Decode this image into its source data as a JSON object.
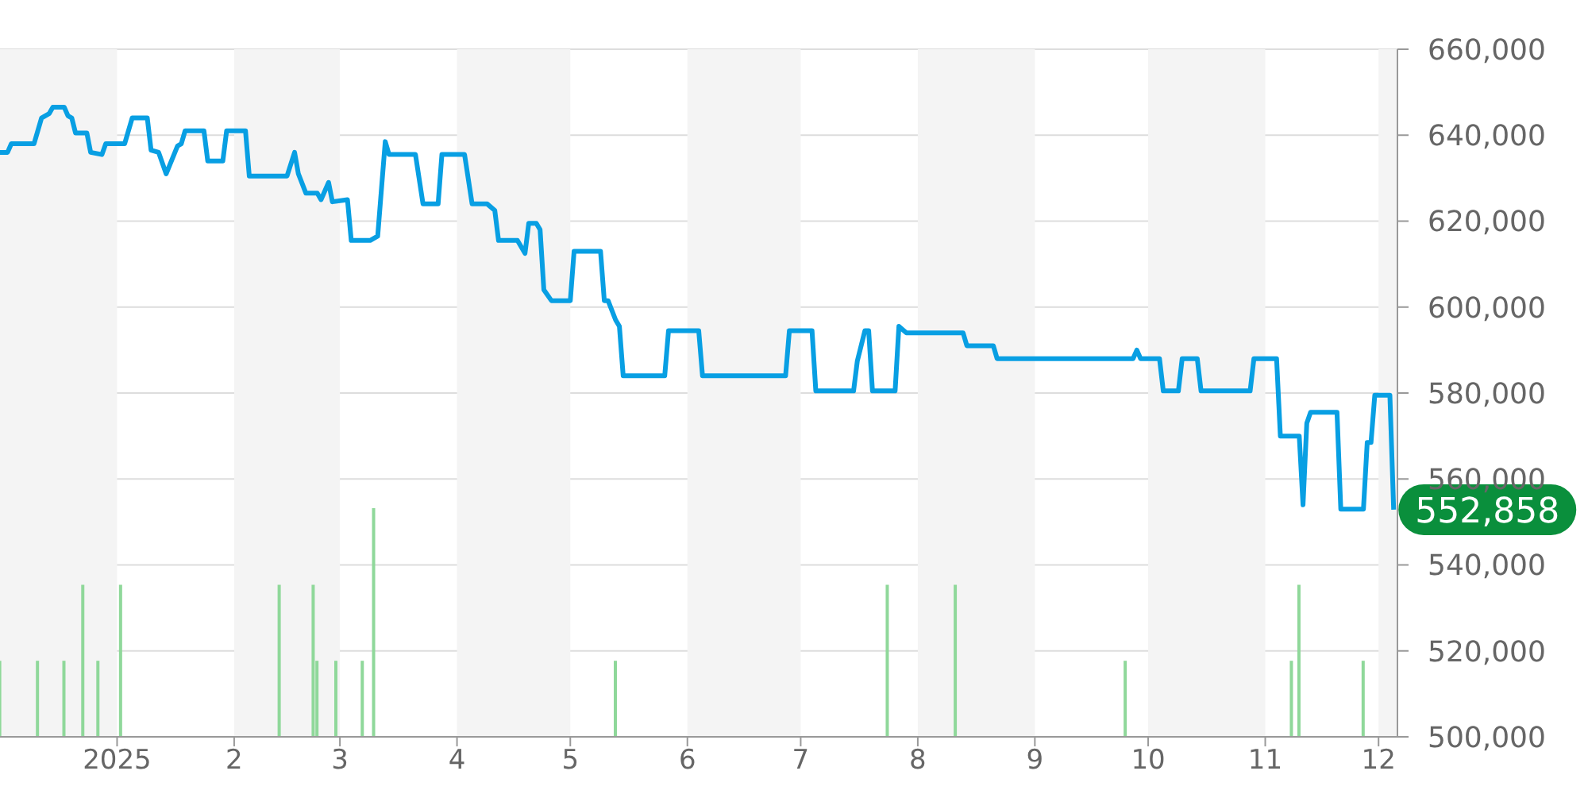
{
  "chart_data": {
    "type": "line",
    "xlim": [
      "2024-12-01",
      "2025-12-06"
    ],
    "xticks": [
      {
        "value": "2025-01-01",
        "label": "2025"
      },
      {
        "value": "2025-02-01",
        "label": "2"
      },
      {
        "value": "2025-03-01",
        "label": "3"
      },
      {
        "value": "2025-04-01",
        "label": "4"
      },
      {
        "value": "2025-05-01",
        "label": "5"
      },
      {
        "value": "2025-06-01",
        "label": "6"
      },
      {
        "value": "2025-07-01",
        "label": "7"
      },
      {
        "value": "2025-08-01",
        "label": "8"
      },
      {
        "value": "2025-09-01",
        "label": "9"
      },
      {
        "value": "2025-10-01",
        "label": "10"
      },
      {
        "value": "2025-11-01",
        "label": "11"
      },
      {
        "value": "2025-12-01",
        "label": "12"
      }
    ],
    "ylim": [
      500000,
      660000
    ],
    "yticks": [
      {
        "value": 500000,
        "label": "500,000"
      },
      {
        "value": 520000,
        "label": "520,000"
      },
      {
        "value": 540000,
        "label": "540,000"
      },
      {
        "value": 560000,
        "label": "560,000"
      },
      {
        "value": 580000,
        "label": "580,000"
      },
      {
        "value": 600000,
        "label": "600,000"
      },
      {
        "value": 620000,
        "label": "620,000"
      },
      {
        "value": 640000,
        "label": "640,000"
      },
      {
        "value": 660000,
        "label": "660,000"
      }
    ],
    "grid": "y",
    "marker": "none",
    "line_style": "solid",
    "bands": [
      {
        "axis": "x",
        "from": "2024-12-01",
        "to": "2025-01-01",
        "color": "#f4f4f4"
      },
      {
        "axis": "x",
        "from": "2025-02-01",
        "to": "2025-03-01",
        "color": "#f4f4f4"
      },
      {
        "axis": "x",
        "from": "2025-04-01",
        "to": "2025-05-01",
        "color": "#f4f4f4"
      },
      {
        "axis": "x",
        "from": "2025-06-01",
        "to": "2025-07-01",
        "color": "#f4f4f4"
      },
      {
        "axis": "x",
        "from": "2025-08-01",
        "to": "2025-09-01",
        "color": "#f4f4f4"
      },
      {
        "axis": "x",
        "from": "2025-10-01",
        "to": "2025-11-01",
        "color": "#f4f4f4"
      },
      {
        "axis": "x",
        "from": "2025-12-01",
        "to": "2025-12-06",
        "color": "#f4f4f4"
      }
    ],
    "annotations": [
      {
        "text": "552,858",
        "x": "2025-12-05",
        "y": 552858
      }
    ],
    "series": [
      {
        "type": "bar",
        "color": "#8fd89a",
        "x": [
          "2024-12-01",
          "2024-12-11",
          "2024-12-18",
          "2024-12-23",
          "2024-12-27",
          "2025-01-02",
          "2025-02-13",
          "2025-02-22",
          "2025-02-23",
          "2025-02-28",
          "2025-03-07",
          "2025-03-10",
          "2025-05-13",
          "2025-07-24",
          "2025-08-11",
          "2025-09-25",
          "2025-11-08",
          "2025-11-10",
          "2025-11-27"
        ],
        "values": [
          517700,
          517700,
          517700,
          535400,
          517700,
          535400,
          535400,
          535400,
          517700,
          517700,
          517700,
          553200,
          517700,
          535400,
          535400,
          517700,
          517700,
          535400,
          517700
        ]
      },
      {
        "color": "#089fe3",
        "x": [
          "2024-12-01",
          "2024-12-03",
          "2024-12-04",
          "2024-12-10",
          "2024-12-12",
          "2024-12-14",
          "2024-12-15",
          "2024-12-18",
          "2024-12-19",
          "2024-12-20",
          "2024-12-21",
          "2024-12-24",
          "2024-12-25",
          "2024-12-28",
          "2024-12-29",
          "2025-01-03",
          "2025-01-05",
          "2025-01-09",
          "2025-01-10",
          "2025-01-12",
          "2025-01-14",
          "2025-01-17",
          "2025-01-18",
          "2025-01-19",
          "2025-01-24",
          "2025-01-25",
          "2025-01-29",
          "2025-01-30",
          "2025-02-04",
          "2025-02-05",
          "2025-02-15",
          "2025-02-17",
          "2025-02-18",
          "2025-02-20",
          "2025-02-23",
          "2025-02-24",
          "2025-02-26",
          "2025-02-27",
          "2025-03-03",
          "2025-03-04",
          "2025-03-09",
          "2025-03-11",
          "2025-03-13",
          "2025-03-14",
          "2025-03-21",
          "2025-03-23",
          "2025-03-27",
          "2025-03-28",
          "2025-04-03",
          "2025-04-05",
          "2025-04-09",
          "2025-04-11",
          "2025-04-12",
          "2025-04-17",
          "2025-04-19",
          "2025-04-20",
          "2025-04-22",
          "2025-04-23",
          "2025-04-24",
          "2025-04-26",
          "2025-05-01",
          "2025-05-02",
          "2025-05-09",
          "2025-05-10",
          "2025-05-11",
          "2025-05-13",
          "2025-05-14",
          "2025-05-15",
          "2025-05-26",
          "2025-05-27",
          "2025-06-04",
          "2025-06-05",
          "2025-06-27",
          "2025-06-28",
          "2025-07-04",
          "2025-07-05",
          "2025-07-15",
          "2025-07-16",
          "2025-07-18",
          "2025-07-19",
          "2025-07-20",
          "2025-07-26",
          "2025-07-27",
          "2025-07-29",
          "2025-08-13",
          "2025-08-14",
          "2025-08-21",
          "2025-08-22",
          "2025-09-27",
          "2025-09-28",
          "2025-09-29",
          "2025-10-04",
          "2025-10-05",
          "2025-10-09",
          "2025-10-10",
          "2025-10-14",
          "2025-10-15",
          "2025-10-28",
          "2025-10-29",
          "2025-11-04",
          "2025-11-05",
          "2025-11-10",
          "2025-11-11",
          "2025-11-12",
          "2025-11-13",
          "2025-11-20",
          "2025-11-21",
          "2025-11-27",
          "2025-11-28",
          "2025-11-29",
          "2025-11-30",
          "2025-12-04",
          "2025-12-05"
        ],
        "values": [
          636000,
          636000,
          638000,
          638000,
          644000,
          645000,
          646500,
          646500,
          644500,
          644000,
          640500,
          640500,
          636000,
          635500,
          638000,
          638000,
          644000,
          644000,
          636500,
          636000,
          631000,
          637500,
          638000,
          641000,
          641000,
          634000,
          634000,
          641000,
          641000,
          630500,
          630500,
          636000,
          631000,
          626500,
          626500,
          625000,
          629000,
          624500,
          625000,
          615500,
          615500,
          616500,
          638500,
          635500,
          635500,
          624000,
          624000,
          635500,
          635500,
          624000,
          624000,
          622500,
          615500,
          615500,
          612500,
          619500,
          619500,
          618000,
          604000,
          601500,
          601500,
          613000,
          613000,
          601500,
          601500,
          597000,
          595500,
          584000,
          584000,
          594500,
          594500,
          584000,
          584000,
          594500,
          594500,
          580500,
          580500,
          587500,
          594500,
          594500,
          580500,
          580500,
          595500,
          594000,
          594000,
          591000,
          591000,
          588000,
          588000,
          590000,
          588000,
          588000,
          580500,
          580500,
          588000,
          588000,
          580500,
          580500,
          588000,
          588000,
          570000,
          570000,
          554000,
          573000,
          575500,
          575500,
          553000,
          553000,
          568500,
          568500,
          579500,
          579500,
          552858
        ]
      }
    ]
  }
}
